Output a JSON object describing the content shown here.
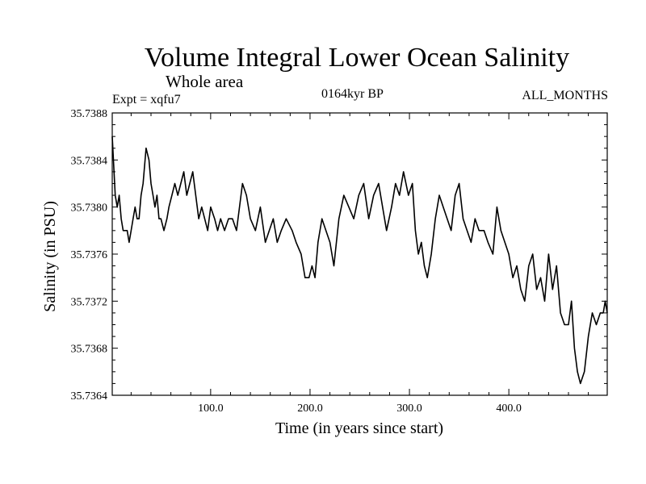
{
  "chart_data": {
    "type": "line",
    "title": "Volume Integral Lower Ocean Salinity",
    "subtitle": "Whole area",
    "annotation_left": "Expt = xqfu7",
    "annotation_center": "0164kyr BP",
    "annotation_right": "ALL_MONTHS",
    "xlabel": "Time (in years since start)",
    "ylabel": "Salinity (in PSU)",
    "xlim": [
      1,
      499
    ],
    "ylim": [
      35.7364,
      35.7388
    ],
    "xticks": [
      100,
      200,
      300,
      400
    ],
    "xtick_labels": [
      "100.0",
      "200.0",
      "300.0",
      "400.0"
    ],
    "yticks": [
      35.7364,
      35.7368,
      35.7372,
      35.7376,
      35.738,
      35.7384,
      35.7388
    ],
    "ytick_labels": [
      "35.7364",
      "35.7368",
      "35.7372",
      "35.7376",
      "35.7380",
      "35.7384",
      "35.7388"
    ],
    "grid": false,
    "series": [
      {
        "name": "Salinity",
        "color": "#000000",
        "x": [
          1,
          4,
          6,
          8,
          10,
          12,
          14,
          16,
          18,
          20,
          22,
          24,
          26,
          28,
          30,
          32,
          35,
          38,
          40,
          42,
          44,
          46,
          48,
          50,
          53,
          56,
          58,
          61,
          64,
          67,
          70,
          73,
          76,
          79,
          82,
          85,
          88,
          91,
          94,
          97,
          100,
          104,
          107,
          110,
          114,
          118,
          122,
          126,
          129,
          132,
          136,
          140,
          145,
          150,
          155,
          159,
          163,
          167,
          171,
          176,
          182,
          186,
          191,
          195,
          199,
          202,
          205,
          208,
          212,
          216,
          220,
          224,
          229,
          234,
          239,
          244,
          249,
          254,
          259,
          264,
          269,
          273,
          277,
          282,
          286,
          290,
          294,
          299,
          303,
          306,
          309,
          312,
          315,
          318,
          322,
          326,
          330,
          334,
          338,
          342,
          346,
          350,
          354,
          358,
          362,
          366,
          370,
          375,
          379,
          384,
          388,
          392,
          396,
          400,
          404,
          408,
          412,
          416,
          420,
          424,
          428,
          432,
          436,
          440,
          444,
          448,
          452,
          456,
          460,
          463,
          466,
          469,
          472,
          476,
          480,
          484,
          488,
          492,
          495,
          497,
          499
        ],
        "values": [
          35.7386,
          35.7381,
          35.738,
          35.7381,
          35.7379,
          35.7378,
          35.7378,
          35.7378,
          35.7377,
          35.7378,
          35.7379,
          35.738,
          35.7379,
          35.7379,
          35.7381,
          35.7382,
          35.7385,
          35.7384,
          35.7382,
          35.7381,
          35.738,
          35.7381,
          35.7379,
          35.7379,
          35.7378,
          35.7379,
          35.738,
          35.7381,
          35.7382,
          35.7381,
          35.7382,
          35.7383,
          35.7381,
          35.7382,
          35.7383,
          35.7381,
          35.7379,
          35.738,
          35.7379,
          35.7378,
          35.738,
          35.7379,
          35.7378,
          35.7379,
          35.7378,
          35.7379,
          35.7379,
          35.7378,
          35.738,
          35.7382,
          35.7381,
          35.7379,
          35.7378,
          35.738,
          35.7377,
          35.7378,
          35.7379,
          35.7377,
          35.7378,
          35.7379,
          35.7378,
          35.7377,
          35.7376,
          35.7374,
          35.7374,
          35.7375,
          35.7374,
          35.7377,
          35.7379,
          35.7378,
          35.7377,
          35.7375,
          35.7379,
          35.7381,
          35.738,
          35.7379,
          35.7381,
          35.7382,
          35.7379,
          35.7381,
          35.7382,
          35.738,
          35.7378,
          35.738,
          35.7382,
          35.7381,
          35.7383,
          35.7381,
          35.7382,
          35.7378,
          35.7376,
          35.7377,
          35.7375,
          35.7374,
          35.7376,
          35.7379,
          35.7381,
          35.738,
          35.7379,
          35.7378,
          35.7381,
          35.7382,
          35.7379,
          35.7378,
          35.7377,
          35.7379,
          35.7378,
          35.7378,
          35.7377,
          35.7376,
          35.738,
          35.7378,
          35.7377,
          35.7376,
          35.7374,
          35.7375,
          35.7373,
          35.7372,
          35.7375,
          35.7376,
          35.7373,
          35.7374,
          35.7372,
          35.7376,
          35.7373,
          35.7375,
          35.7371,
          35.737,
          35.737,
          35.7372,
          35.7368,
          35.7366,
          35.7365,
          35.7366,
          35.7369,
          35.7371,
          35.737,
          35.7371,
          35.7371,
          35.7372,
          35.7371
        ]
      }
    ]
  }
}
